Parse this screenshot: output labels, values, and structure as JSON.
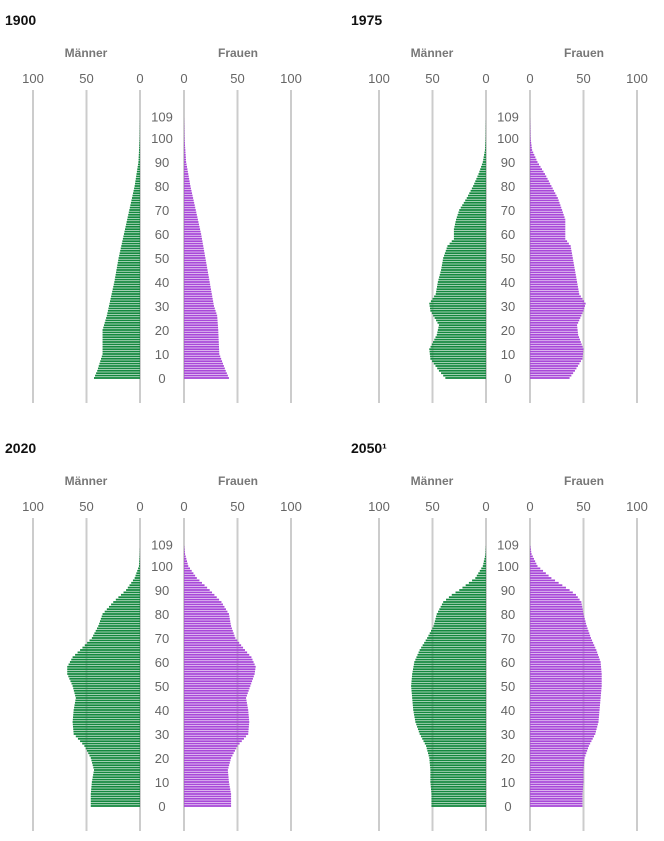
{
  "colors": {
    "male": "#14883f",
    "female": "#a848d8",
    "grid": "#cccccc"
  },
  "labels": {
    "male": "Männer",
    "female": "Frauen"
  },
  "axis": {
    "x_ticks": [
      "100",
      "50",
      "0"
    ],
    "x_ticks_right": [
      "0",
      "50",
      "100"
    ],
    "age_ticks": [
      "0",
      "10",
      "20",
      "30",
      "40",
      "50",
      "60",
      "70",
      "80",
      "90",
      "100",
      "109"
    ]
  },
  "chart_data": [
    {
      "type": "bar",
      "title": "1900",
      "xlabel": "",
      "ylabel": "",
      "xlim": [
        0,
        100
      ],
      "age_range": [
        0,
        109
      ],
      "series": [
        {
          "name": "Männer",
          "profile": [
            [
              0,
              43
            ],
            [
              3,
              40
            ],
            [
              10,
              35
            ],
            [
              20,
              35
            ],
            [
              26,
              31
            ],
            [
              30,
              29
            ],
            [
              40,
              24
            ],
            [
              50,
              20
            ],
            [
              60,
              15
            ],
            [
              70,
              10
            ],
            [
              80,
              5
            ],
            [
              90,
              1.5
            ],
            [
              100,
              0.3
            ],
            [
              109,
              0
            ]
          ]
        },
        {
          "name": "Frauen",
          "profile": [
            [
              0,
              42
            ],
            [
              3,
              39
            ],
            [
              10,
              33
            ],
            [
              20,
              32
            ],
            [
              26,
              31
            ],
            [
              30,
              28
            ],
            [
              40,
              24
            ],
            [
              50,
              20
            ],
            [
              60,
              16
            ],
            [
              70,
              11
            ],
            [
              80,
              6
            ],
            [
              90,
              2
            ],
            [
              100,
              0.5
            ],
            [
              109,
              0
            ]
          ]
        }
      ]
    },
    {
      "type": "bar",
      "title": "1975",
      "xlabel": "",
      "ylabel": "",
      "xlim": [
        0,
        100
      ],
      "age_range": [
        0,
        109
      ],
      "series": [
        {
          "name": "Männer",
          "profile": [
            [
              0,
              38
            ],
            [
              3,
              44
            ],
            [
              8,
              52
            ],
            [
              12,
              53
            ],
            [
              18,
              46
            ],
            [
              22,
              44
            ],
            [
              28,
              52
            ],
            [
              31,
              53
            ],
            [
              35,
              47
            ],
            [
              40,
              45
            ],
            [
              45,
              42
            ],
            [
              50,
              40
            ],
            [
              55,
              36
            ],
            [
              58,
              30
            ],
            [
              62,
              30
            ],
            [
              66,
              28
            ],
            [
              70,
              25
            ],
            [
              75,
              18
            ],
            [
              80,
              12
            ],
            [
              85,
              7
            ],
            [
              90,
              3
            ],
            [
              95,
              1
            ],
            [
              100,
              0.3
            ],
            [
              109,
              0
            ]
          ]
        },
        {
          "name": "Frauen",
          "profile": [
            [
              0,
              37
            ],
            [
              3,
              42
            ],
            [
              8,
              49
            ],
            [
              12,
              50
            ],
            [
              18,
              45
            ],
            [
              22,
              44
            ],
            [
              28,
              50
            ],
            [
              31,
              52
            ],
            [
              35,
              46
            ],
            [
              40,
              44
            ],
            [
              45,
              42
            ],
            [
              50,
              40
            ],
            [
              55,
              38
            ],
            [
              58,
              33
            ],
            [
              62,
              33
            ],
            [
              66,
              33
            ],
            [
              70,
              30
            ],
            [
              75,
              26
            ],
            [
              80,
              20
            ],
            [
              85,
              14
            ],
            [
              90,
              7
            ],
            [
              95,
              2
            ],
            [
              100,
              0.5
            ],
            [
              109,
              0
            ]
          ]
        }
      ]
    },
    {
      "type": "bar",
      "title": "2020",
      "xlabel": "",
      "ylabel": "",
      "xlim": [
        0,
        100
      ],
      "age_range": [
        0,
        109
      ],
      "series": [
        {
          "name": "Männer",
          "profile": [
            [
              0,
              46
            ],
            [
              5,
              46
            ],
            [
              10,
              45
            ],
            [
              15,
              43
            ],
            [
              20,
              46
            ],
            [
              25,
              52
            ],
            [
              30,
              62
            ],
            [
              35,
              63
            ],
            [
              40,
              62
            ],
            [
              45,
              60
            ],
            [
              50,
              63
            ],
            [
              55,
              68
            ],
            [
              58,
              68
            ],
            [
              62,
              63
            ],
            [
              65,
              56
            ],
            [
              70,
              45
            ],
            [
              75,
              39
            ],
            [
              80,
              35
            ],
            [
              85,
              25
            ],
            [
              90,
              13
            ],
            [
              95,
              5
            ],
            [
              100,
              1
            ],
            [
              105,
              0.2
            ],
            [
              109,
              0
            ]
          ]
        },
        {
          "name": "Frauen",
          "profile": [
            [
              0,
              44
            ],
            [
              5,
              44
            ],
            [
              10,
              42
            ],
            [
              15,
              41
            ],
            [
              20,
              44
            ],
            [
              25,
              50
            ],
            [
              30,
              60
            ],
            [
              35,
              61
            ],
            [
              40,
              60
            ],
            [
              45,
              58
            ],
            [
              50,
              62
            ],
            [
              55,
              66
            ],
            [
              58,
              67
            ],
            [
              62,
              63
            ],
            [
              65,
              57
            ],
            [
              70,
              48
            ],
            [
              75,
              44
            ],
            [
              80,
              42
            ],
            [
              85,
              35
            ],
            [
              90,
              24
            ],
            [
              95,
              12
            ],
            [
              100,
              4
            ],
            [
              105,
              1
            ],
            [
              109,
              0
            ]
          ]
        }
      ]
    },
    {
      "type": "bar",
      "title": "2050¹",
      "xlabel": "",
      "ylabel": "",
      "xlim": [
        0,
        100
      ],
      "age_range": [
        0,
        109
      ],
      "series": [
        {
          "name": "Männer",
          "profile": [
            [
              0,
              51
            ],
            [
              5,
              51
            ],
            [
              10,
              52
            ],
            [
              15,
              52
            ],
            [
              20,
              53
            ],
            [
              25,
              56
            ],
            [
              30,
              62
            ],
            [
              35,
              66
            ],
            [
              40,
              68
            ],
            [
              45,
              69
            ],
            [
              50,
              70
            ],
            [
              55,
              69
            ],
            [
              60,
              67
            ],
            [
              65,
              62
            ],
            [
              70,
              55
            ],
            [
              75,
              49
            ],
            [
              80,
              46
            ],
            [
              85,
              40
            ],
            [
              88,
              32
            ],
            [
              90,
              25
            ],
            [
              95,
              10
            ],
            [
              100,
              3
            ],
            [
              105,
              0.5
            ],
            [
              109,
              0
            ]
          ]
        },
        {
          "name": "Frauen",
          "profile": [
            [
              0,
              49
            ],
            [
              5,
              49
            ],
            [
              10,
              50
            ],
            [
              15,
              50
            ],
            [
              20,
              51
            ],
            [
              25,
              55
            ],
            [
              30,
              61
            ],
            [
              35,
              64
            ],
            [
              40,
              65
            ],
            [
              45,
              66
            ],
            [
              50,
              67
            ],
            [
              55,
              67
            ],
            [
              60,
              66
            ],
            [
              65,
              62
            ],
            [
              70,
              57
            ],
            [
              75,
              53
            ],
            [
              80,
              50
            ],
            [
              85,
              48
            ],
            [
              88,
              43
            ],
            [
              90,
              37
            ],
            [
              95,
              20
            ],
            [
              100,
              7
            ],
            [
              105,
              1.5
            ],
            [
              109,
              0
            ]
          ]
        }
      ]
    }
  ]
}
